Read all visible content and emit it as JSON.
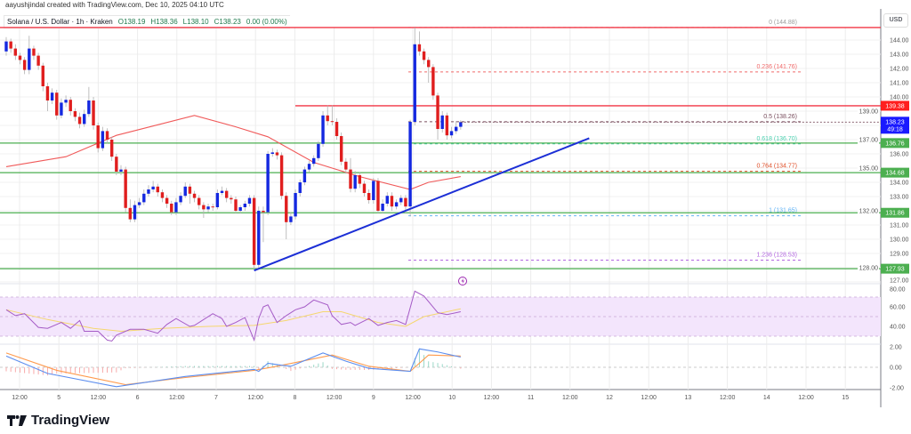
{
  "header": {
    "credit": "aayushjindal created with TradingView.com, Dec 10, 2025 04:10 UTC",
    "symbol": "Solana / U.S. Dollar · 1h · Kraken",
    "open": "O138.19",
    "high": "H138.36",
    "low": "L138.10",
    "close": "C138.23",
    "change": "0.00 (0.00%)"
  },
  "currency_label": "USD",
  "brand": "TradingView",
  "colors": {
    "bull": "#1428e0",
    "bear": "#e01e1e",
    "ma": "#f05a5a",
    "support": "#4caf50",
    "resistance": "#f23645",
    "trendline": "#1c2fd6",
    "rsi": "#a55bc6",
    "rsi_ma": "#f5d76e",
    "macd": "#5b8def",
    "signal": "#ff9a4d"
  },
  "chart_data": [
    {
      "type": "candlestick",
      "title": "Solana / U.S. Dollar · 1h · Kraken",
      "ylabel": "USD",
      "ylim": [
        126.6,
        145.8
      ],
      "grid": true,
      "y_ticks": [
        "144.00",
        "143.00",
        "142.00",
        "141.00",
        "140.00",
        "139.00",
        "137.00",
        "136.00",
        "135.00",
        "134.00",
        "133.00",
        "132.00",
        "131.00",
        "130.00",
        "129.00",
        "128.00",
        "127.00"
      ],
      "x_ticks": [
        "12:00",
        "5",
        "12:00",
        "6",
        "12:00",
        "7",
        "12:00",
        "8",
        "12:00",
        "9",
        "12:00",
        "10",
        "12:00",
        "11",
        "12:00",
        "12",
        "12:00",
        "13",
        "12:00",
        "14",
        "12:00",
        "15"
      ],
      "candles_ohlc": [
        [
          143.2,
          144.2,
          142.9,
          143.9
        ],
        [
          143.9,
          144.1,
          143.1,
          143.4
        ],
        [
          143.4,
          143.7,
          142.6,
          142.9
        ],
        [
          142.9,
          143.1,
          142.3,
          142.6
        ],
        [
          142.6,
          142.8,
          141.6,
          141.9
        ],
        [
          141.9,
          144.3,
          141.6,
          143.4
        ],
        [
          143.4,
          143.6,
          142.6,
          142.9
        ],
        [
          142.9,
          143.1,
          141.9,
          142.2
        ],
        [
          142.2,
          142.4,
          140.4,
          140.75
        ],
        [
          140.75,
          141.0,
          139.0,
          139.75
        ],
        [
          139.75,
          140.6,
          139.5,
          140.3
        ],
        [
          140.3,
          140.5,
          138.4,
          138.7
        ],
        [
          138.7,
          139.9,
          138.5,
          139.6
        ],
        [
          139.6,
          140.1,
          139.3,
          139.8
        ],
        [
          139.8,
          140.0,
          138.7,
          139.0
        ],
        [
          139.0,
          139.2,
          138.3,
          138.6
        ],
        [
          138.6,
          138.9,
          137.8,
          138.1
        ],
        [
          138.1,
          139.1,
          137.9,
          138.8
        ],
        [
          138.8,
          140.7,
          138.6,
          139.75
        ],
        [
          139.75,
          140.0,
          137.7,
          138.0
        ],
        [
          138.0,
          138.2,
          136.1,
          136.4
        ],
        [
          136.4,
          137.9,
          136.2,
          137.6
        ],
        [
          137.6,
          137.8,
          136.7,
          137.0
        ],
        [
          137.0,
          137.2,
          135.5,
          135.8
        ],
        [
          135.8,
          136.0,
          134.5,
          134.75
        ],
        [
          134.75,
          135.2,
          134.5,
          134.9
        ],
        [
          134.9,
          135.1,
          131.9,
          132.2
        ],
        [
          132.2,
          132.8,
          131.2,
          131.4
        ],
        [
          131.4,
          132.7,
          131.2,
          132.4
        ],
        [
          132.4,
          132.9,
          132.2,
          132.6
        ],
        [
          132.6,
          133.5,
          132.4,
          133.2
        ],
        [
          133.2,
          133.8,
          133.0,
          133.5
        ],
        [
          133.5,
          134.1,
          133.3,
          133.7
        ],
        [
          133.7,
          133.9,
          133.0,
          133.3
        ],
        [
          133.3,
          133.5,
          132.6,
          132.9
        ],
        [
          132.9,
          133.1,
          132.2,
          132.5
        ],
        [
          132.5,
          132.7,
          131.7,
          131.9
        ],
        [
          131.9,
          132.9,
          131.7,
          132.6
        ],
        [
          132.6,
          133.3,
          132.4,
          133.05
        ],
        [
          133.05,
          134.0,
          132.9,
          133.7
        ],
        [
          133.7,
          133.9,
          132.5,
          133.2
        ],
        [
          133.2,
          133.4,
          132.6,
          132.9
        ],
        [
          132.9,
          133.1,
          132.1,
          132.4
        ],
        [
          132.4,
          132.6,
          131.5,
          132.1
        ],
        [
          132.1,
          132.5,
          131.9,
          132.3
        ],
        [
          132.3,
          132.5,
          132.0,
          132.25
        ],
        [
          132.25,
          133.5,
          132.1,
          133.25
        ],
        [
          133.25,
          133.7,
          133.1,
          133.4
        ],
        [
          133.4,
          133.6,
          132.6,
          132.9
        ],
        [
          132.9,
          133.1,
          132.5,
          132.8
        ],
        [
          132.8,
          133.0,
          131.8,
          132.0
        ],
        [
          132.0,
          132.4,
          131.8,
          132.25
        ],
        [
          132.25,
          132.7,
          132.0,
          132.5
        ],
        [
          132.5,
          133.1,
          132.3,
          132.9
        ],
        [
          132.9,
          133.1,
          127.93,
          128.2
        ],
        [
          128.2,
          132.3,
          128.0,
          132.0
        ],
        [
          132.0,
          132.3,
          129.8,
          131.9
        ],
        [
          131.9,
          136.2,
          131.7,
          136.0
        ],
        [
          136.0,
          136.4,
          135.8,
          136.1
        ],
        [
          136.1,
          136.3,
          135.6,
          135.9
        ],
        [
          135.9,
          136.1,
          132.8,
          133.05
        ],
        [
          133.05,
          133.3,
          130.0,
          131.2
        ],
        [
          131.2,
          131.9,
          131.0,
          131.6
        ],
        [
          131.6,
          133.5,
          131.4,
          133.25
        ],
        [
          133.25,
          134.2,
          133.0,
          134.0
        ],
        [
          134.0,
          135.1,
          133.8,
          134.9
        ],
        [
          134.9,
          135.5,
          134.7,
          135.3
        ],
        [
          135.3,
          135.9,
          135.1,
          135.7
        ],
        [
          135.7,
          136.9,
          135.5,
          136.7
        ],
        [
          136.7,
          139.0,
          136.5,
          138.7
        ],
        [
          138.7,
          139.4,
          138.0,
          138.3
        ],
        [
          138.3,
          139.4,
          138.0,
          138.25
        ],
        [
          138.25,
          138.5,
          137.0,
          137.25
        ],
        [
          137.25,
          137.5,
          135.2,
          135.45
        ],
        [
          135.45,
          135.7,
          134.6,
          134.9
        ],
        [
          134.9,
          135.7,
          133.3,
          133.55
        ],
        [
          133.55,
          134.8,
          133.3,
          134.5
        ],
        [
          134.5,
          134.7,
          133.6,
          133.9
        ],
        [
          133.9,
          134.1,
          133.0,
          133.25
        ],
        [
          133.25,
          133.5,
          132.5,
          132.75
        ],
        [
          132.75,
          134.3,
          132.5,
          134.1
        ],
        [
          134.1,
          134.3,
          131.8,
          132.0
        ],
        [
          132.0,
          132.8,
          131.8,
          132.5
        ],
        [
          132.5,
          133.3,
          132.3,
          133.05
        ],
        [
          133.05,
          133.3,
          132.0,
          132.3
        ],
        [
          132.3,
          132.8,
          132.1,
          132.6
        ],
        [
          132.6,
          133.1,
          132.4,
          132.9
        ],
        [
          132.9,
          133.1,
          131.8,
          132.3
        ],
        [
          132.3,
          138.4,
          131.6,
          138.25
        ],
        [
          138.25,
          144.88,
          138.0,
          143.7
        ],
        [
          143.7,
          144.6,
          142.9,
          143.2
        ],
        [
          143.2,
          143.4,
          142.3,
          142.6
        ],
        [
          142.6,
          142.8,
          141.0,
          142.1
        ],
        [
          142.1,
          142.3,
          139.8,
          140.1
        ],
        [
          140.1,
          140.3,
          137.0,
          137.75
        ],
        [
          137.75,
          139.0,
          137.5,
          138.7
        ],
        [
          138.7,
          138.9,
          137.0,
          137.3
        ],
        [
          137.3,
          137.9,
          137.1,
          137.6
        ],
        [
          137.6,
          138.3,
          137.4,
          137.9
        ],
        [
          137.9,
          138.36,
          137.7,
          138.23
        ]
      ],
      "moving_average": [
        [
          1,
          135.1
        ],
        [
          14,
          135.8
        ],
        [
          25,
          137.3
        ],
        [
          42,
          138.7
        ],
        [
          51,
          137.9
        ],
        [
          58,
          137.2
        ],
        [
          68,
          135.4
        ],
        [
          78,
          134.4
        ],
        [
          89,
          133.5
        ],
        [
          93,
          134.0
        ],
        [
          100,
          134.4
        ]
      ],
      "horizontal_levels": [
        {
          "value": 144.88,
          "kind": "resistance"
        },
        {
          "value": 139.38,
          "kind": "resistance",
          "label": "139.38"
        },
        {
          "value": 136.76,
          "kind": "support",
          "label": "136.76"
        },
        {
          "value": 134.68,
          "kind": "support",
          "label": "134.68"
        },
        {
          "value": 131.86,
          "kind": "support",
          "label": "131.86"
        },
        {
          "value": 127.93,
          "kind": "support",
          "label": "127.93"
        }
      ],
      "trendline": [
        [
          55,
          127.8
        ],
        [
          128,
          137.1
        ]
      ],
      "fibonacci": [
        {
          "label": "0 (144.88)",
          "value": 144.88,
          "color": "#9e9e9e"
        },
        {
          "label": "0.236 (141.76)",
          "value": 141.76,
          "color": "#f06a6a"
        },
        {
          "label": "0.5 (138.26)",
          "value": 138.26,
          "color": "#7a4e5e"
        },
        {
          "label": "0.618 (136.70)",
          "value": 136.7,
          "color": "#4dd0b0"
        },
        {
          "label": "0.764 (134.77)",
          "value": 134.77,
          "color": "#e0502a"
        },
        {
          "label": "1 (131.65)",
          "value": 131.65,
          "color": "#64b5f6"
        },
        {
          "label": "1.236 (128.53)",
          "value": 128.53,
          "color": "#b266e0"
        }
      ],
      "last_price": {
        "label": "138.23",
        "countdown": "49:18"
      }
    },
    {
      "type": "line",
      "pane": "RSI",
      "ylim": [
        20,
        90
      ],
      "y_ticks": [
        "80.00",
        "60.00",
        "40.00"
      ],
      "band": [
        30,
        70
      ],
      "rsi": [
        [
          1,
          57
        ],
        [
          3,
          51
        ],
        [
          5,
          53
        ],
        [
          8,
          39
        ],
        [
          10,
          38
        ],
        [
          13,
          44
        ],
        [
          15,
          38
        ],
        [
          17,
          46
        ],
        [
          18,
          35
        ],
        [
          21,
          35
        ],
        [
          23,
          26
        ],
        [
          24,
          25
        ],
        [
          25,
          31
        ],
        [
          28,
          37
        ],
        [
          31,
          37
        ],
        [
          34,
          33
        ],
        [
          36,
          42
        ],
        [
          38,
          48
        ],
        [
          41,
          40
        ],
        [
          42,
          41
        ],
        [
          46,
          53
        ],
        [
          48,
          48
        ],
        [
          49,
          40
        ],
        [
          51,
          44
        ],
        [
          53,
          49
        ],
        [
          55,
          26
        ],
        [
          56,
          48
        ],
        [
          57,
          60
        ],
        [
          58,
          62
        ],
        [
          60,
          44
        ],
        [
          62,
          51
        ],
        [
          64,
          57
        ],
        [
          66,
          60
        ],
        [
          68,
          67
        ],
        [
          71,
          62
        ],
        [
          72,
          51
        ],
        [
          74,
          42
        ],
        [
          76,
          44
        ],
        [
          77,
          41
        ],
        [
          80,
          48
        ],
        [
          82,
          41
        ],
        [
          84,
          44
        ],
        [
          86,
          46
        ],
        [
          88,
          42
        ],
        [
          90,
          76
        ],
        [
          92,
          71
        ],
        [
          95,
          54
        ],
        [
          97,
          52
        ],
        [
          100,
          55
        ]
      ],
      "rsi_ma": [
        [
          1,
          57
        ],
        [
          10,
          47
        ],
        [
          20,
          38
        ],
        [
          26,
          35
        ],
        [
          35,
          38
        ],
        [
          45,
          40
        ],
        [
          55,
          41
        ],
        [
          62,
          46
        ],
        [
          70,
          55
        ],
        [
          74,
          55
        ],
        [
          82,
          44
        ],
        [
          88,
          40
        ],
        [
          92,
          50
        ],
        [
          100,
          58
        ]
      ]
    },
    {
      "type": "line",
      "pane": "MACD",
      "ylim": [
        -2.3,
        2.6
      ],
      "y_ticks": [
        "2.00",
        "0.00",
        "-2.00"
      ],
      "macd": [
        [
          1,
          1.1
        ],
        [
          10,
          -0.6
        ],
        [
          25,
          -1.9
        ],
        [
          40,
          -0.9
        ],
        [
          55,
          -0.2
        ],
        [
          56,
          -0.4
        ],
        [
          58,
          0.4
        ],
        [
          61,
          0.2
        ],
        [
          63,
          0.1
        ],
        [
          70,
          1.4
        ],
        [
          75,
          0.6
        ],
        [
          80,
          -0.1
        ],
        [
          89,
          -0.4
        ],
        [
          91,
          1.8
        ],
        [
          95,
          1.5
        ],
        [
          100,
          1.0
        ]
      ],
      "signal": [
        [
          1,
          1.4
        ],
        [
          12,
          -0.3
        ],
        [
          27,
          -1.7
        ],
        [
          40,
          -1.0
        ],
        [
          55,
          -0.3
        ],
        [
          60,
          0.1
        ],
        [
          72,
          1.2
        ],
        [
          80,
          0.1
        ],
        [
          89,
          -0.4
        ],
        [
          93,
          1.2
        ],
        [
          100,
          1.1
        ]
      ]
    }
  ]
}
